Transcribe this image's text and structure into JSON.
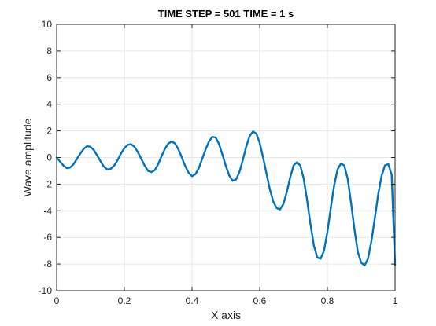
{
  "chart_data": {
    "type": "line",
    "title": "TIME STEP = 501 TIME = 1 s",
    "xlabel": "X axis",
    "ylabel": "Wave amplitude",
    "xlim": [
      0,
      1
    ],
    "ylim": [
      -10,
      10
    ],
    "grid": true,
    "x_ticks": [
      "0",
      "0.2",
      "0.4",
      "0.6",
      "0.8",
      "1"
    ],
    "y_ticks": [
      "10",
      "8",
      "6",
      "4",
      "2",
      "0",
      "-2",
      "-4",
      "-6",
      "-8",
      "-10"
    ],
    "x_tick_values": [
      0,
      0.2,
      0.4,
      0.6,
      0.8,
      1
    ],
    "y_tick_values": [
      10,
      8,
      6,
      4,
      2,
      0,
      -2,
      -4,
      -6,
      -8,
      -10
    ],
    "series": [
      {
        "color": "#0072BD",
        "x": [
          0,
          0.01,
          0.02,
          0.03,
          0.04,
          0.05,
          0.06,
          0.07,
          0.08,
          0.09,
          0.1,
          0.11,
          0.12,
          0.13,
          0.14,
          0.15,
          0.16,
          0.17,
          0.18,
          0.19,
          0.2,
          0.21,
          0.22,
          0.23,
          0.24,
          0.25,
          0.26,
          0.27,
          0.28,
          0.29,
          0.3,
          0.31,
          0.32,
          0.33,
          0.34,
          0.35,
          0.36,
          0.37,
          0.38,
          0.39,
          0.4,
          0.41,
          0.42,
          0.43,
          0.44,
          0.45,
          0.46,
          0.47,
          0.48,
          0.49,
          0.5,
          0.51,
          0.52,
          0.53,
          0.54,
          0.55,
          0.56,
          0.57,
          0.58,
          0.59,
          0.6,
          0.61,
          0.62,
          0.63,
          0.64,
          0.65,
          0.66,
          0.67,
          0.68,
          0.69,
          0.7,
          0.71,
          0.72,
          0.73,
          0.74,
          0.75,
          0.76,
          0.77,
          0.78,
          0.79,
          0.8,
          0.81,
          0.82,
          0.83,
          0.84,
          0.85,
          0.86,
          0.87,
          0.88,
          0.89,
          0.9,
          0.91,
          0.92,
          0.93,
          0.94,
          0.95,
          0.96,
          0.97,
          0.98,
          0.99,
          1.0
        ],
        "y": [
          0,
          -0.3,
          -0.6,
          -0.8,
          -0.75,
          -0.5,
          -0.1,
          0.3,
          0.65,
          0.85,
          0.8,
          0.55,
          0.15,
          -0.3,
          -0.7,
          -0.9,
          -0.85,
          -0.6,
          -0.2,
          0.3,
          0.7,
          0.95,
          1.0,
          0.8,
          0.4,
          -0.1,
          -0.6,
          -1.0,
          -1.1,
          -0.95,
          -0.5,
          0.1,
          0.65,
          1.05,
          1.2,
          1.05,
          0.6,
          0.0,
          -0.65,
          -1.15,
          -1.4,
          -1.25,
          -0.8,
          -0.1,
          0.6,
          1.2,
          1.55,
          1.5,
          1.0,
          0.2,
          -0.65,
          -1.35,
          -1.75,
          -1.65,
          -1.1,
          -0.2,
          0.8,
          1.6,
          1.95,
          1.8,
          1.1,
          0.0,
          -1.2,
          -2.4,
          -3.3,
          -3.8,
          -3.9,
          -3.5,
          -2.6,
          -1.5,
          -0.6,
          -0.35,
          -0.6,
          -1.6,
          -3.2,
          -5.0,
          -6.6,
          -7.5,
          -7.6,
          -7.0,
          -5.6,
          -3.8,
          -2.1,
          -0.9,
          -0.45,
          -0.6,
          -1.6,
          -3.4,
          -5.4,
          -7.1,
          -7.9,
          -8.1,
          -7.6,
          -6.3,
          -4.6,
          -2.8,
          -1.4,
          -0.6,
          -0.5,
          -1.3,
          -8.1
        ]
      }
    ]
  }
}
